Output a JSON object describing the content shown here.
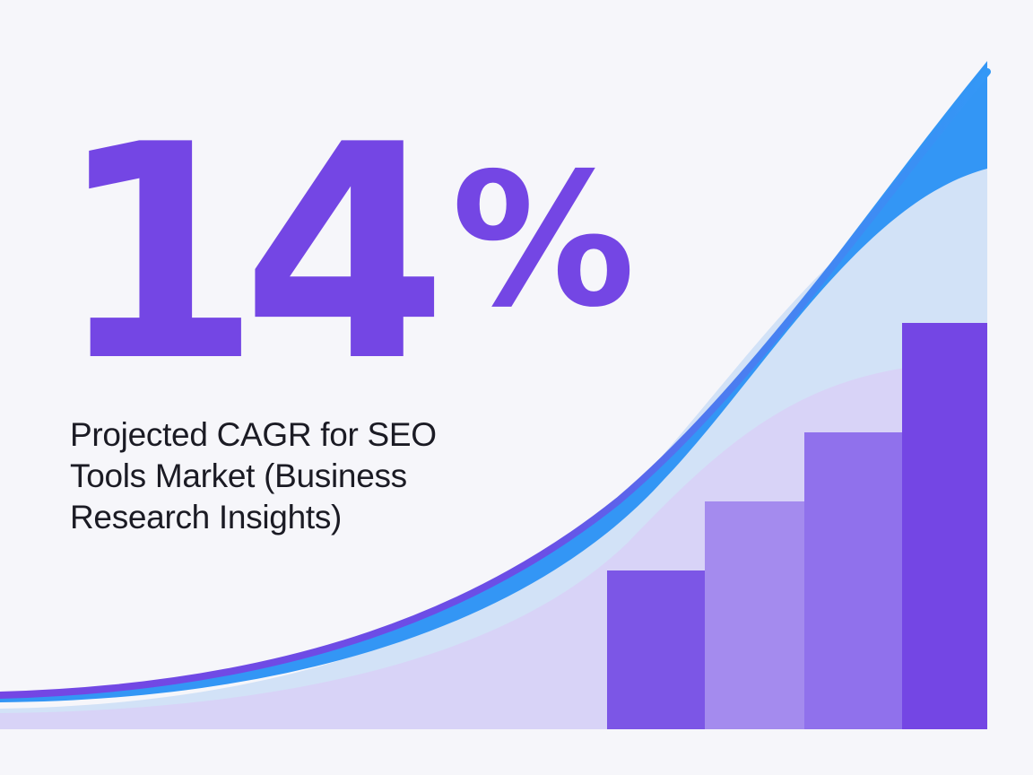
{
  "stat": {
    "number": "14",
    "percent_sign": "%",
    "caption": "Projected CAGR for SEO Tools Market (Business Research Insights)"
  },
  "colors": {
    "background": "#f6f6fa",
    "accent_purple": "#7446e4",
    "accent_blue": "#3396f5",
    "area_light_blue": "#cfe0f7",
    "area_light_purple": "#d6d1f7",
    "caption_text": "#1b1b24"
  },
  "bars": {
    "relative_values": [
      0.39,
      0.56,
      0.73,
      1.0
    ]
  }
}
